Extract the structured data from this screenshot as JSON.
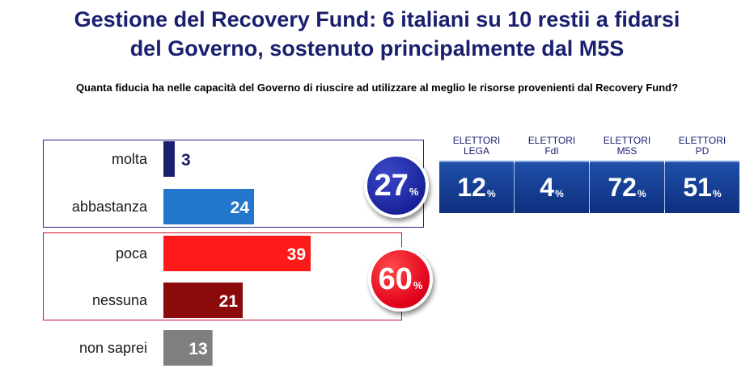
{
  "title_line1": "Gestione del Recovery Fund: 6 italiani su 10 restii a fidarsi",
  "title_line2": "del Governo, sostenuto principalmente dal M5S",
  "question": "Quanta fiducia ha nelle capacità del Governo di riuscire ad utilizzare al meglio le risorse provenienti dal Recovery Fund?",
  "chart_data": {
    "type": "bar",
    "orientation": "horizontal",
    "categories": [
      "molta",
      "abbastanza",
      "poca",
      "nessuna",
      "non saprei"
    ],
    "values": [
      3,
      24,
      39,
      21,
      13
    ],
    "colors": [
      "#1a1f6e",
      "#2277cc",
      "#ff1a1a",
      "#8b0a0a",
      "#7f7f7f"
    ],
    "xlim": [
      0,
      39
    ],
    "grid": false,
    "groups": [
      {
        "total": "27",
        "unit": "%",
        "color": "#1a2399"
      },
      {
        "total": "60",
        "unit": "%",
        "color": "#e0001a"
      }
    ],
    "voters": [
      {
        "line1": "ELETTORI",
        "line2": "LEGA",
        "value": "12",
        "unit": "%"
      },
      {
        "line1": "ELETTORI",
        "line2": "FdI",
        "value": "4",
        "unit": "%"
      },
      {
        "line1": "ELETTORI",
        "line2": "M5S",
        "value": "72",
        "unit": "%"
      },
      {
        "line1": "ELETTORI",
        "line2": "PD",
        "value": "51",
        "unit": "%"
      }
    ]
  }
}
